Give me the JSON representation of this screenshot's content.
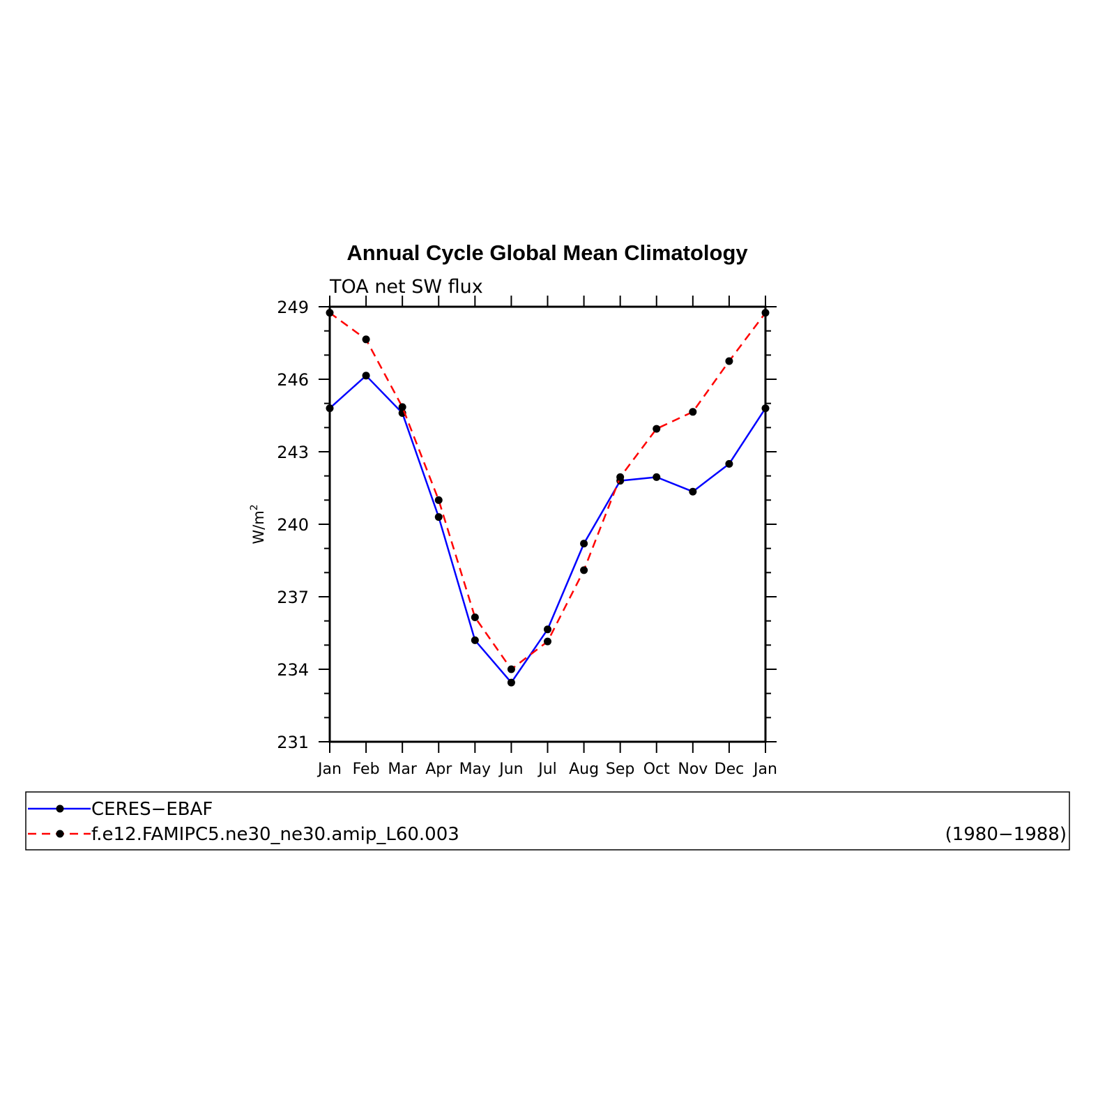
{
  "chart_data": {
    "type": "line",
    "title": "Annual Cycle Global Mean Climatology",
    "subtitle": "TOA net SW flux",
    "ylabel": "W/m",
    "ylabel_superscript": "2",
    "categories": [
      "Jan",
      "Feb",
      "Mar",
      "Apr",
      "May",
      "Jun",
      "Jul",
      "Aug",
      "Sep",
      "Oct",
      "Nov",
      "Dec",
      "Jan"
    ],
    "yticks": [
      "231",
      "234",
      "237",
      "240",
      "243",
      "246",
      "249"
    ],
    "ylim": [
      231,
      249
    ],
    "series": [
      {
        "name": "CERES−EBAF",
        "color": "#0000ff",
        "style": "solid",
        "values": [
          244.8,
          246.15,
          244.6,
          240.3,
          235.2,
          233.45,
          235.65,
          239.2,
          241.8,
          241.95,
          241.35,
          242.5,
          244.8
        ]
      },
      {
        "name": "f.e12.FAMIPC5.ne30_ne30.amip_L60.003",
        "color": "#ff0000",
        "style": "dashed",
        "values": [
          248.75,
          247.65,
          244.85,
          241.0,
          236.15,
          234.0,
          235.15,
          238.1,
          241.95,
          243.95,
          244.65,
          246.75,
          248.75
        ]
      }
    ],
    "legend_note": "(1980−1988)",
    "grid": false,
    "legend_position": "bottom"
  }
}
